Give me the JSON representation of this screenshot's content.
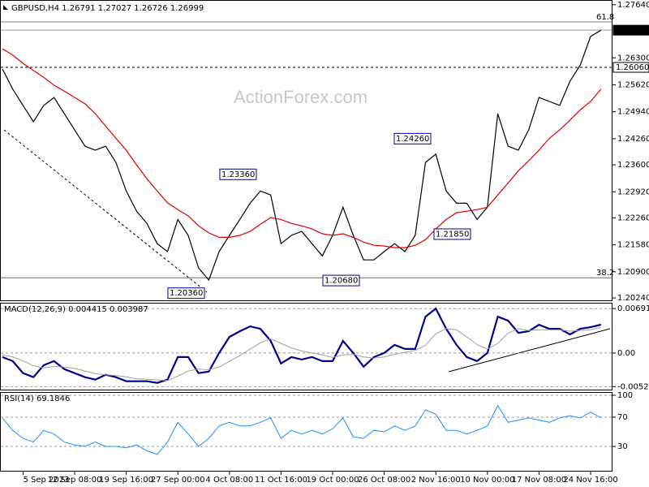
{
  "chart_data": [
    {
      "type": "line",
      "title": "GBPUSD,H4  1.26791 1.27027 1.26726 1.26999",
      "watermark": "ActionForex.com",
      "categories": [
        null,
        null,
        "5 Sep 2023",
        null,
        null,
        null,
        null,
        "12 Sep 08:00",
        null,
        null,
        null,
        null,
        "19 Sep 16:00",
        null,
        null,
        null,
        null,
        "27 Sep 00:00",
        null,
        null,
        null,
        null,
        "4 Oct 08:00",
        null,
        null,
        null,
        null,
        "11 Oct 16:00",
        null,
        null,
        null,
        null,
        "19 Oct 00:00",
        null,
        null,
        null,
        null,
        "26 Oct 08:00",
        null,
        null,
        null,
        null,
        "2 Nov 16:00",
        null,
        null,
        null,
        null,
        "10 Nov 00:00",
        null,
        null,
        null,
        null,
        "17 Nov 08:00",
        null,
        null,
        null,
        null,
        "24 Nov 16:00",
        null
      ],
      "series": [
        {
          "color": "#000000",
          "values": [
            1.2602,
            1.2551,
            1.251,
            1.2469,
            1.251,
            1.253,
            1.2489,
            1.2448,
            1.2407,
            1.2397,
            1.2407,
            1.2366,
            1.2294,
            1.2243,
            1.2212,
            1.2161,
            1.2141,
            1.2222,
            1.2182,
            1.21,
            1.2069,
            1.2141,
            1.2182,
            1.2222,
            1.2263,
            1.2294,
            1.2284,
            1.2161,
            1.2182,
            1.2192,
            1.2161,
            1.213,
            1.2182,
            1.2253,
            1.2182,
            1.212,
            1.212,
            1.2141,
            1.2161,
            1.2141,
            1.2182,
            1.2366,
            1.2387,
            1.2294,
            1.2263,
            1.2263,
            1.2222,
            1.2253,
            1.2489,
            1.2407,
            1.2397,
            1.2448,
            1.253,
            1.252,
            1.251,
            1.2571,
            1.2612,
            1.2684,
            1.26999
          ]
        },
        {
          "color": "#e00000",
          "values": [
            1.2653,
            1.2637,
            1.2616,
            1.2598,
            1.2581,
            1.2561,
            1.2546,
            1.253,
            1.2514,
            1.2489,
            1.2458,
            1.2427,
            1.2397,
            1.236,
            1.2325,
            1.2294,
            1.2264,
            1.2247,
            1.2231,
            1.2206,
            1.2188,
            1.2177,
            1.2177,
            1.2182,
            1.2192,
            1.221,
            1.2227,
            1.2222,
            1.2212,
            1.2206,
            1.2198,
            1.2186,
            1.2182,
            1.2186,
            1.2177,
            1.2165,
            1.2157,
            1.2155,
            1.2151,
            1.2151,
            1.2157,
            1.2171,
            1.2198,
            1.2222,
            1.2239,
            1.2243,
            1.2247,
            1.2253,
            1.2284,
            1.2314,
            1.2345,
            1.237,
            1.2397,
            1.2427,
            1.2448,
            1.2473,
            1.2499,
            1.252,
            1.2551
          ]
        }
      ],
      "ylim": [
        1.2018,
        1.2774
      ],
      "yticks": [
        {
          "value": 1.2764,
          "label": "1.27640"
        },
        {
          "value": 1.263,
          "label": "1.26300"
        },
        {
          "value": 1.2562,
          "label": "1.25620"
        },
        {
          "value": 1.2494,
          "label": "1.24940"
        },
        {
          "value": 1.2426,
          "label": "1.24260"
        },
        {
          "value": 1.236,
          "label": "1.23600"
        },
        {
          "value": 1.2292,
          "label": "1.22920"
        },
        {
          "value": 1.2226,
          "label": "1.22260"
        },
        {
          "value": 1.2158,
          "label": "1.21580"
        },
        {
          "value": 1.209,
          "label": "1.20900"
        },
        {
          "value": 1.2024,
          "label": "1.20240"
        }
      ],
      "grid": false,
      "levels": [
        {
          "value": 1.26999,
          "label": "1.26999"
        },
        {
          "value": 1.2606,
          "label": "1.26060"
        }
      ],
      "fibonacci": [
        {
          "ratio": 61.8,
          "price": 1.27207
        },
        {
          "ratio": 38.2,
          "price": 1.2075
        }
      ],
      "annotations": [
        {
          "value": 1.2336,
          "label": "1.23360"
        },
        {
          "value": 1.2426,
          "label": "1.24260"
        },
        {
          "value": 1.2185,
          "label": "1.21850"
        },
        {
          "value": 1.2068,
          "label": "1.20680"
        },
        {
          "value": 1.2036,
          "label": "1.20360"
        }
      ]
    },
    {
      "type": "line",
      "title": "MACD(12,26,9) 0.004415 0.003987",
      "series": [
        {
          "color": "#00008b",
          "values": [
            -0.00063,
            -0.00126,
            -0.00314,
            -0.00377,
            -0.00189,
            -0.00126,
            -0.00251,
            -0.00314,
            -0.00377,
            -0.00415,
            -0.00339,
            -0.00377,
            -0.0044,
            -0.0044,
            -0.0044,
            -0.00465,
            -0.00415,
            -0.00063,
            -0.00063,
            -0.00314,
            -0.00289,
            0,
            0.00251,
            0.00339,
            0.00415,
            0.00377,
            0.00189,
            -0.00163,
            -0.00063,
            -0.00101,
            -0.00063,
            -0.00126,
            -0.00126,
            0.00189,
            0,
            -0.00214,
            -0.00063,
            0,
            0.00126,
            0.00063,
            0.00063,
            0.00566,
            0.00691,
            0.00377,
            0.00126,
            -0.00063,
            -0.00126,
            0,
            0.00566,
            0.00503,
            0.00314,
            0.00339,
            0.0044,
            0.00377,
            0.00377,
            0.00289,
            0.00377,
            0.00402,
            0.004415
          ]
        },
        {
          "color": "#a0a0a0",
          "values": [
            -0.0003,
            -0.0006,
            -0.0012,
            -0.002,
            -0.0023,
            -0.0021,
            -0.0022,
            -0.0024,
            -0.0028,
            -0.0032,
            -0.0034,
            -0.0035,
            -0.0037,
            -0.004,
            -0.0041,
            -0.0042,
            -0.0043,
            -0.0036,
            -0.0028,
            -0.0025,
            -0.0026,
            -0.0022,
            -0.0013,
            -0.0004,
            0.0006,
            0.0016,
            0.0022,
            0.0015,
            0.0008,
            0.0003,
            0,
            -0.0003,
            -0.0007,
            -0.0003,
            -0.0002,
            -0.0006,
            -0.0008,
            -0.0006,
            -0.0002,
            0.0001,
            0.0004,
            0.0012,
            0.003,
            0.0038,
            0.0036,
            0.0025,
            0.0013,
            0.0006,
            0.0015,
            0.0031,
            0.0038,
            0.0035,
            0.0036,
            0.0036,
            0.0036,
            0.0034,
            0.0035,
            0.0036,
            0.003987
          ]
        }
      ],
      "ylim": [
        -0.0057,
        0.0077
      ],
      "yticks": [
        0.006915,
        {
          "value": 0,
          "label": "0.00"
        },
        -0.005241
      ],
      "grid": true
    },
    {
      "type": "line",
      "title": "RSI(14) 69.1846",
      "series": [
        {
          "color": "#1e90ff",
          "values": [
            69,
            52,
            41,
            36,
            52,
            47,
            36,
            32,
            30,
            36,
            30,
            30,
            28,
            32,
            24,
            19,
            36,
            63,
            47,
            30,
            41,
            58,
            63,
            58,
            58,
            63,
            69,
            41,
            52,
            47,
            52,
            47,
            54,
            69,
            43,
            41,
            52,
            50,
            58,
            52,
            58,
            80,
            74,
            52,
            52,
            47,
            52,
            58,
            86,
            63,
            66,
            69,
            66,
            63,
            69,
            72,
            69,
            77,
            69.1846
          ]
        }
      ],
      "ylim": [
        0,
        100
      ],
      "yticks": [
        100,
        70,
        30
      ],
      "grid": true
    }
  ]
}
